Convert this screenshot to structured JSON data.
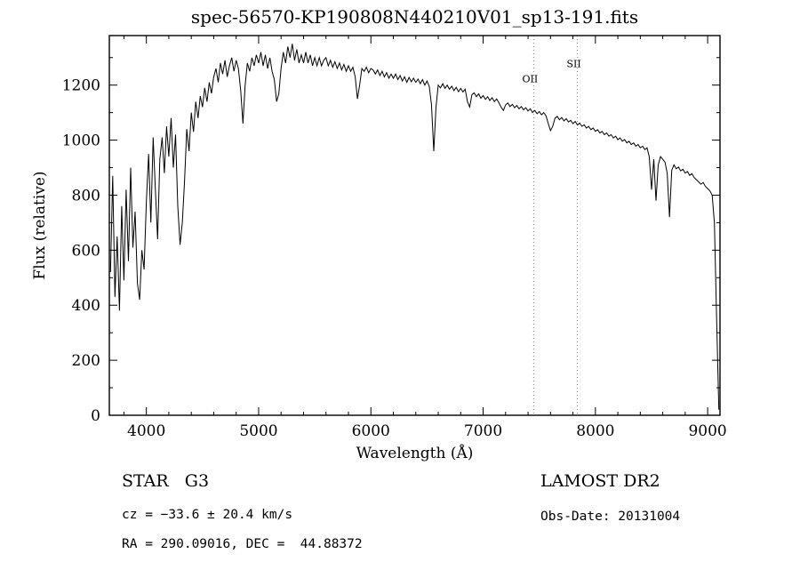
{
  "title": "spec-56570-KP190808N440210V01_sp13-191.fits",
  "footer": {
    "class_label": "STAR   G3",
    "survey": "LAMOST DR2",
    "cz": "cz = −33.6 ± 20.4 km/s",
    "obs_date": "Obs-Date: 20131004",
    "coords": "RA = 290.09016, DEC =  44.88372"
  },
  "chart_data": {
    "type": "line",
    "title": "spec-56570-KP190808N440210V01_sp13-191.fits",
    "xlabel": "Wavelength (Å)",
    "ylabel": "Flux (relative)",
    "xlim": [
      3670,
      9110
    ],
    "ylim": [
      0,
      1380
    ],
    "xticks": [
      4000,
      5000,
      6000,
      7000,
      8000,
      9000
    ],
    "yticks": [
      0,
      200,
      400,
      600,
      800,
      1000,
      1200
    ],
    "line_color": "#000000",
    "marker_line_color": "#888888",
    "annotations": [
      {
        "label": "OII",
        "x": 7450,
        "label_flux": 1210
      },
      {
        "label": "SII",
        "x": 7840,
        "label_flux": 1265
      }
    ],
    "x_start": 3680,
    "x_step": 20,
    "flux": [
      520,
      870,
      430,
      650,
      380,
      760,
      490,
      820,
      560,
      900,
      610,
      740,
      480,
      420,
      600,
      530,
      780,
      950,
      700,
      1010,
      820,
      640,
      930,
      1010,
      880,
      1050,
      940,
      1080,
      900,
      1020,
      760,
      620,
      700,
      850,
      1040,
      960,
      1100,
      1030,
      1140,
      1080,
      1160,
      1120,
      1190,
      1140,
      1210,
      1170,
      1230,
      1260,
      1210,
      1280,
      1240,
      1290,
      1230,
      1270,
      1300,
      1250,
      1290,
      1260,
      1180,
      1060,
      1200,
      1280,
      1250,
      1300,
      1270,
      1310,
      1280,
      1320,
      1270,
      1310,
      1260,
      1300,
      1250,
      1220,
      1140,
      1170,
      1260,
      1320,
      1280,
      1340,
      1300,
      1350,
      1290,
      1330,
      1280,
      1310,
      1280,
      1320,
      1280,
      1310,
      1270,
      1300,
      1270,
      1300,
      1270,
      1290,
      1300,
      1270,
      1290,
      1265,
      1285,
      1260,
      1280,
      1255,
      1275,
      1250,
      1270,
      1250,
      1265,
      1230,
      1150,
      1200,
      1260,
      1250,
      1265,
      1245,
      1260,
      1255,
      1240,
      1255,
      1235,
      1250,
      1230,
      1245,
      1225,
      1240,
      1225,
      1240,
      1220,
      1235,
      1215,
      1230,
      1210,
      1228,
      1212,
      1225,
      1210,
      1222,
      1205,
      1220,
      1200,
      1215,
      1195,
      1130,
      960,
      1120,
      1200,
      1190,
      1205,
      1188,
      1200,
      1185,
      1196,
      1180,
      1192,
      1176,
      1188,
      1175,
      1185,
      1140,
      1120,
      1165,
      1172,
      1158,
      1168,
      1152,
      1162,
      1148,
      1158,
      1144,
      1154,
      1140,
      1150,
      1136,
      1120,
      1108,
      1128,
      1135,
      1122,
      1130,
      1118,
      1126,
      1114,
      1122,
      1110,
      1118,
      1106,
      1114,
      1100,
      1108,
      1096,
      1104,
      1092,
      1100,
      1088,
      1060,
      1035,
      1050,
      1080,
      1086,
      1074,
      1082,
      1070,
      1078,
      1066,
      1072,
      1060,
      1068,
      1055,
      1062,
      1050,
      1056,
      1044,
      1050,
      1038,
      1044,
      1032,
      1038,
      1026,
      1032,
      1020,
      1026,
      1014,
      1020,
      1008,
      1014,
      1002,
      1008,
      996,
      1002,
      990,
      996,
      984,
      990,
      978,
      984,
      972,
      978,
      966,
      972,
      940,
      820,
      930,
      780,
      910,
      940,
      930,
      920,
      880,
      720,
      890,
      910,
      896,
      902,
      888,
      894,
      880,
      886,
      872,
      878,
      864,
      856,
      848,
      840,
      846,
      832,
      824,
      816,
      800,
      700,
      350,
      20
    ]
  }
}
